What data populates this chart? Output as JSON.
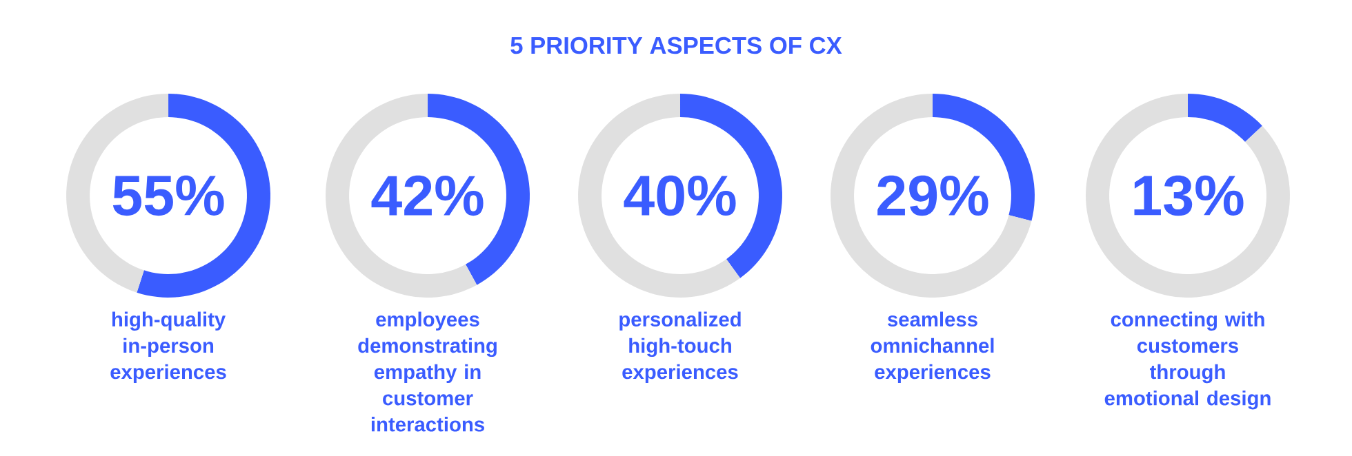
{
  "chart_data": [
    {
      "type": "donut",
      "categories": [
        null,
        null
      ],
      "values": [
        55,
        45
      ],
      "colors": [
        "#3a5cff",
        "#e0e0e0"
      ],
      "annotations": [
        "55%",
        "high-quality in-person experiences"
      ]
    },
    {
      "type": "donut",
      "categories": [
        null,
        null
      ],
      "values": [
        42,
        58
      ],
      "colors": [
        "#3a5cff",
        "#e0e0e0"
      ],
      "annotations": [
        "42%",
        "employees demonstrating empathy in customer interactions"
      ]
    },
    {
      "type": "donut",
      "title": "5 PRIORITY ASPECTS OF CX",
      "categories": [
        null,
        null
      ],
      "values": [
        40,
        60
      ],
      "colors": [
        "#3a5cff",
        "#e0e0e0"
      ],
      "annotations": [
        "40%",
        "personalized high-touch experiences"
      ]
    },
    {
      "type": "donut",
      "categories": [
        null,
        null
      ],
      "values": [
        29,
        71
      ],
      "colors": [
        "#3a5cff",
        "#e0e0e0"
      ],
      "annotations": [
        "29%",
        "seamless omnichannel experiences"
      ]
    },
    {
      "type": "donut",
      "categories": [
        null,
        null
      ],
      "values": [
        13,
        87
      ],
      "colors": [
        "#3a5cff",
        "#e0e0e0"
      ],
      "annotations": [
        "13%",
        "connecting with customers through emotional design"
      ]
    }
  ]
}
